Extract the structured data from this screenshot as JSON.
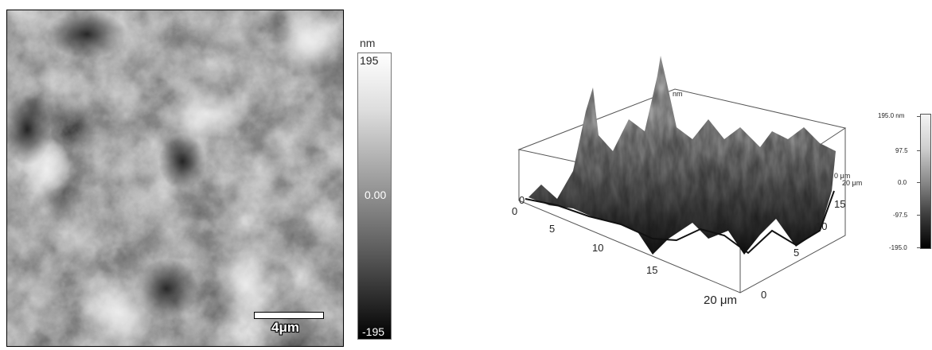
{
  "left_panel": {
    "scale_bar_label": "4μm",
    "colorbar": {
      "unit": "nm",
      "max_label": "195",
      "mid_label": "0.00",
      "min_label": "-195"
    }
  },
  "right_panel": {
    "z_unit_label": "nm",
    "z_zero_label": "0",
    "x_axis": {
      "origin": "0",
      "ticks": [
        "5",
        "10",
        "15"
      ],
      "end_label": "20 μm"
    },
    "y_axis": {
      "origin": "0",
      "ticks": [
        "5",
        "10",
        "15"
      ],
      "end_label": "20 μm"
    },
    "corner_unit_label": "0 μm",
    "colorbar": {
      "labels": [
        "195.0 nm",
        "97.5",
        "0.0",
        "-97.5",
        "-195.0"
      ]
    }
  }
}
